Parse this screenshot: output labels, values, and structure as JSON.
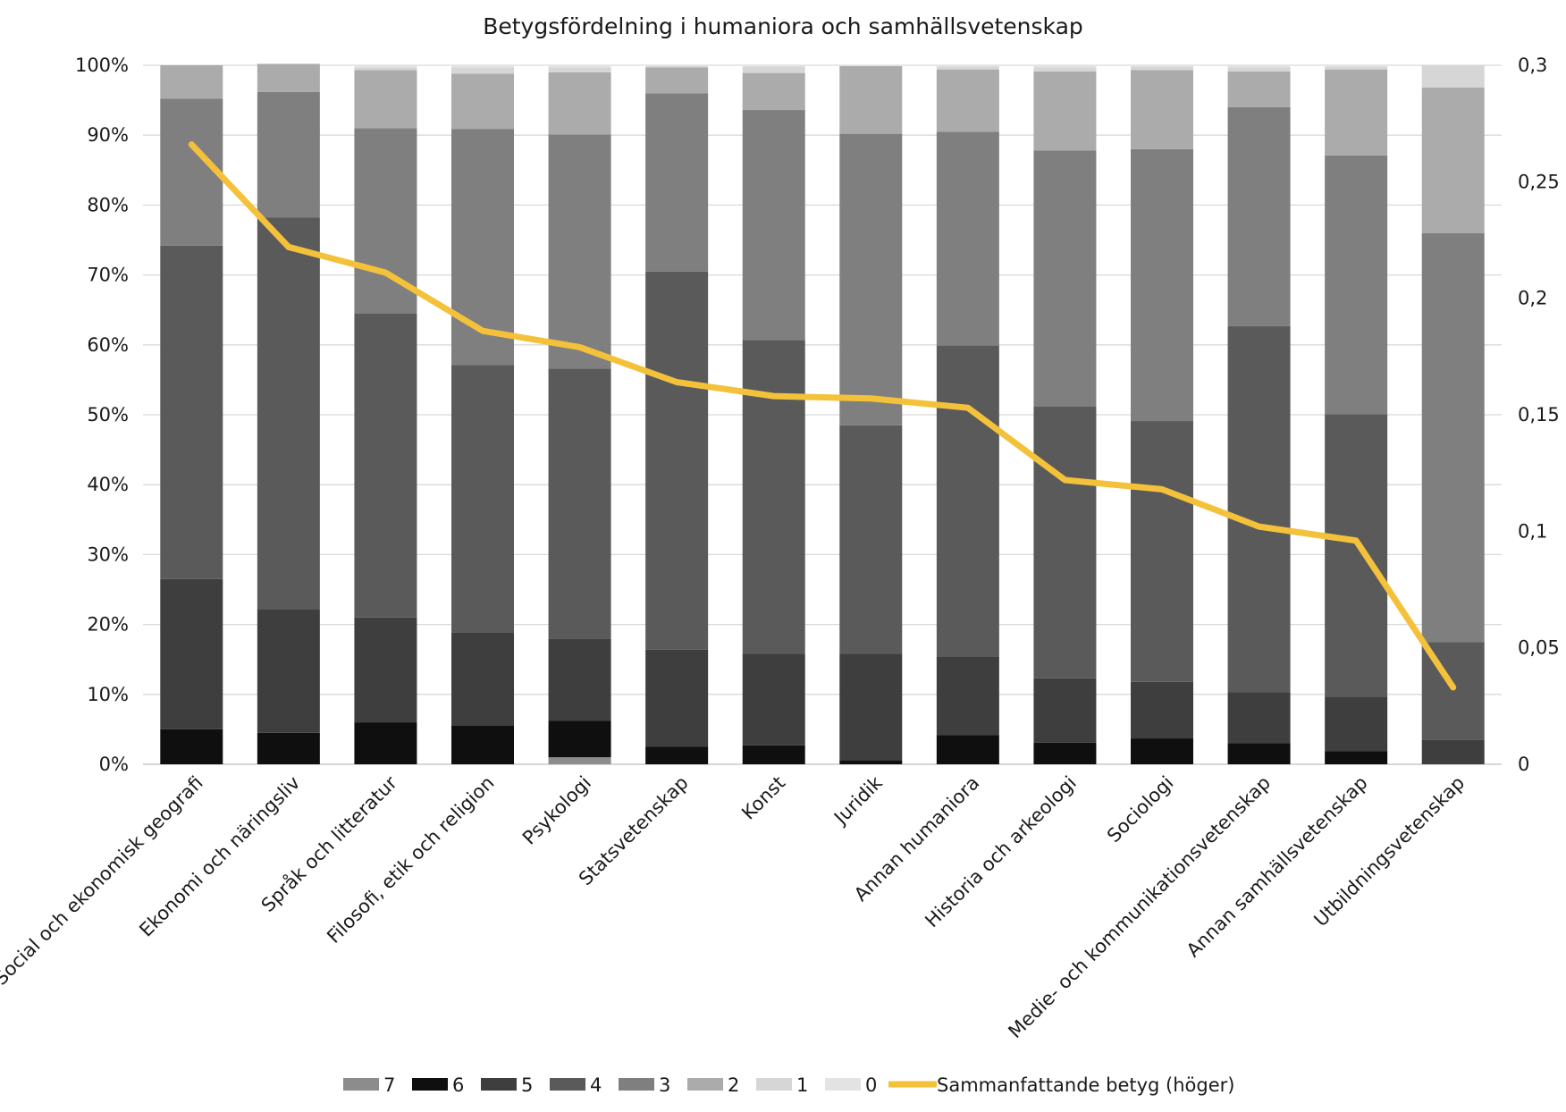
{
  "chart_data": {
    "type": "bar",
    "stacked": true,
    "title": "Betygsfördelning i humaniora och samhällsvetenskap",
    "xlabel": "",
    "ylabel": "",
    "ylim": [
      0,
      1
    ],
    "y2lim": [
      0,
      0.3
    ],
    "yticks": [
      "0%",
      "10%",
      "20%",
      "30%",
      "40%",
      "50%",
      "60%",
      "70%",
      "80%",
      "90%",
      "100%"
    ],
    "y2ticks": [
      "0",
      "0,05",
      "0,1",
      "0,15",
      "0,2",
      "0,25",
      "0,3"
    ],
    "grid": true,
    "legend_position": "bottom",
    "categories": [
      "Social och ekonomisk geografi",
      "Ekonomi och näringsliv",
      "Språk och litteratur",
      "Filosofi, etik och religion",
      "Psykologi",
      "Statsvetenskap",
      "Konst",
      "Juridik",
      "Annan humaniora",
      "Historia och arkeologi",
      "Sociologi",
      "Medie- och kommunikationsvetenskap",
      "Annan samhällsvetenskap",
      "Utbildningsvetenskap"
    ],
    "series": [
      {
        "name": "7",
        "color": "#8c8c8c",
        "values": [
          0,
          0,
          0,
          0,
          0.01,
          0,
          0,
          0,
          0,
          0,
          0,
          0,
          0,
          0
        ]
      },
      {
        "name": "6",
        "color": "#0f0f0f",
        "values": [
          0.05,
          0.045,
          0.06,
          0.055,
          0.052,
          0.025,
          0.027,
          0.006,
          0.042,
          0.031,
          0.037,
          0.03,
          0.019,
          0
        ]
      },
      {
        "name": "5",
        "color": "#3e3e3e",
        "values": [
          0.215,
          0.177,
          0.15,
          0.133,
          0.118,
          0.139,
          0.131,
          0.152,
          0.112,
          0.092,
          0.081,
          0.073,
          0.078,
          0.035
        ]
      },
      {
        "name": "4",
        "color": "#5a5a5a",
        "values": [
          0.477,
          0.56,
          0.435,
          0.383,
          0.386,
          0.541,
          0.449,
          0.327,
          0.445,
          0.389,
          0.373,
          0.524,
          0.404,
          0.14
        ]
      },
      {
        "name": "3",
        "color": "#7f7f7f",
        "values": [
          0.21,
          0.18,
          0.265,
          0.338,
          0.335,
          0.255,
          0.329,
          0.417,
          0.306,
          0.366,
          0.389,
          0.313,
          0.37,
          0.585
        ]
      },
      {
        "name": "2",
        "color": "#ababab",
        "values": [
          0.048,
          0.04,
          0.083,
          0.079,
          0.089,
          0.037,
          0.053,
          0.097,
          0.089,
          0.113,
          0.113,
          0.051,
          0.123,
          0.208
        ]
      },
      {
        "name": "1",
        "color": "#d6d6d6",
        "values": [
          0,
          0,
          0.004,
          0.009,
          0.007,
          0.002,
          0.009,
          0,
          0.004,
          0.006,
          0.005,
          0.006,
          0.004,
          0.032
        ]
      },
      {
        "name": "0",
        "color": "#e3e3e3",
        "values": [
          0,
          0,
          0.003,
          0.003,
          0.003,
          0.001,
          0.002,
          0.001,
          0.002,
          0.003,
          0.002,
          0.003,
          0.002,
          0
        ]
      }
    ],
    "line_series": {
      "name": "Sammanfattande betyg (höger)",
      "axis": "right",
      "color": "#f4c13b",
      "values": [
        0.266,
        0.222,
        0.211,
        0.186,
        0.179,
        0.164,
        0.158,
        0.157,
        0.153,
        0.122,
        0.118,
        0.102,
        0.096,
        0.033
      ]
    }
  }
}
